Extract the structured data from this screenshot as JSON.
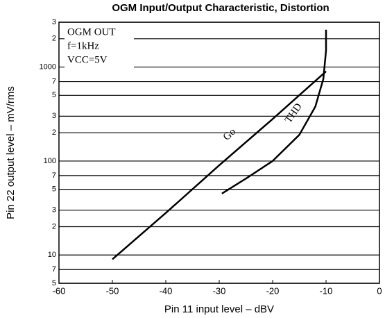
{
  "chart_data": {
    "type": "line",
    "title": "OGM Input/Output Characteristic, Distortion",
    "x_label": "Pin 11 input level – dBV",
    "y_label": "Pin 22 output level – mV/rms",
    "annotations": [
      "OGM OUT",
      "f=1kHz",
      "VCC=5V"
    ],
    "series": [
      {
        "name": "Go",
        "color": "#000000",
        "x": [
          -50,
          -40,
          -30,
          -20,
          -10
        ],
        "values": [
          9,
          28,
          90,
          280,
          900
        ]
      },
      {
        "name": "THD",
        "color": "#000000",
        "x": [
          -29.5,
          -25,
          -20,
          -15,
          -12,
          -10.5,
          -10,
          -10
        ],
        "values": [
          45,
          65,
          100,
          190,
          380,
          750,
          1500,
          2500
        ]
      }
    ],
    "xlim": [
      -60,
      0
    ],
    "xticks": [
      -60,
      -50,
      -40,
      -30,
      -20,
      -10,
      0
    ],
    "ylim": [
      5,
      3000
    ],
    "log_y": true,
    "grid": true,
    "yticks": [
      {
        "value": 3000,
        "label": "3"
      },
      {
        "value": 2000,
        "label": "2"
      },
      1000,
      {
        "value": 700,
        "label": "7"
      },
      {
        "value": 500,
        "label": "5"
      },
      {
        "value": 300,
        "label": "3"
      },
      {
        "value": 200,
        "label": "2"
      },
      100,
      {
        "value": 70,
        "label": "7"
      },
      {
        "value": 50,
        "label": "5"
      },
      {
        "value": 30,
        "label": "3"
      },
      {
        "value": 20,
        "label": "2"
      },
      10,
      7,
      5
    ]
  }
}
